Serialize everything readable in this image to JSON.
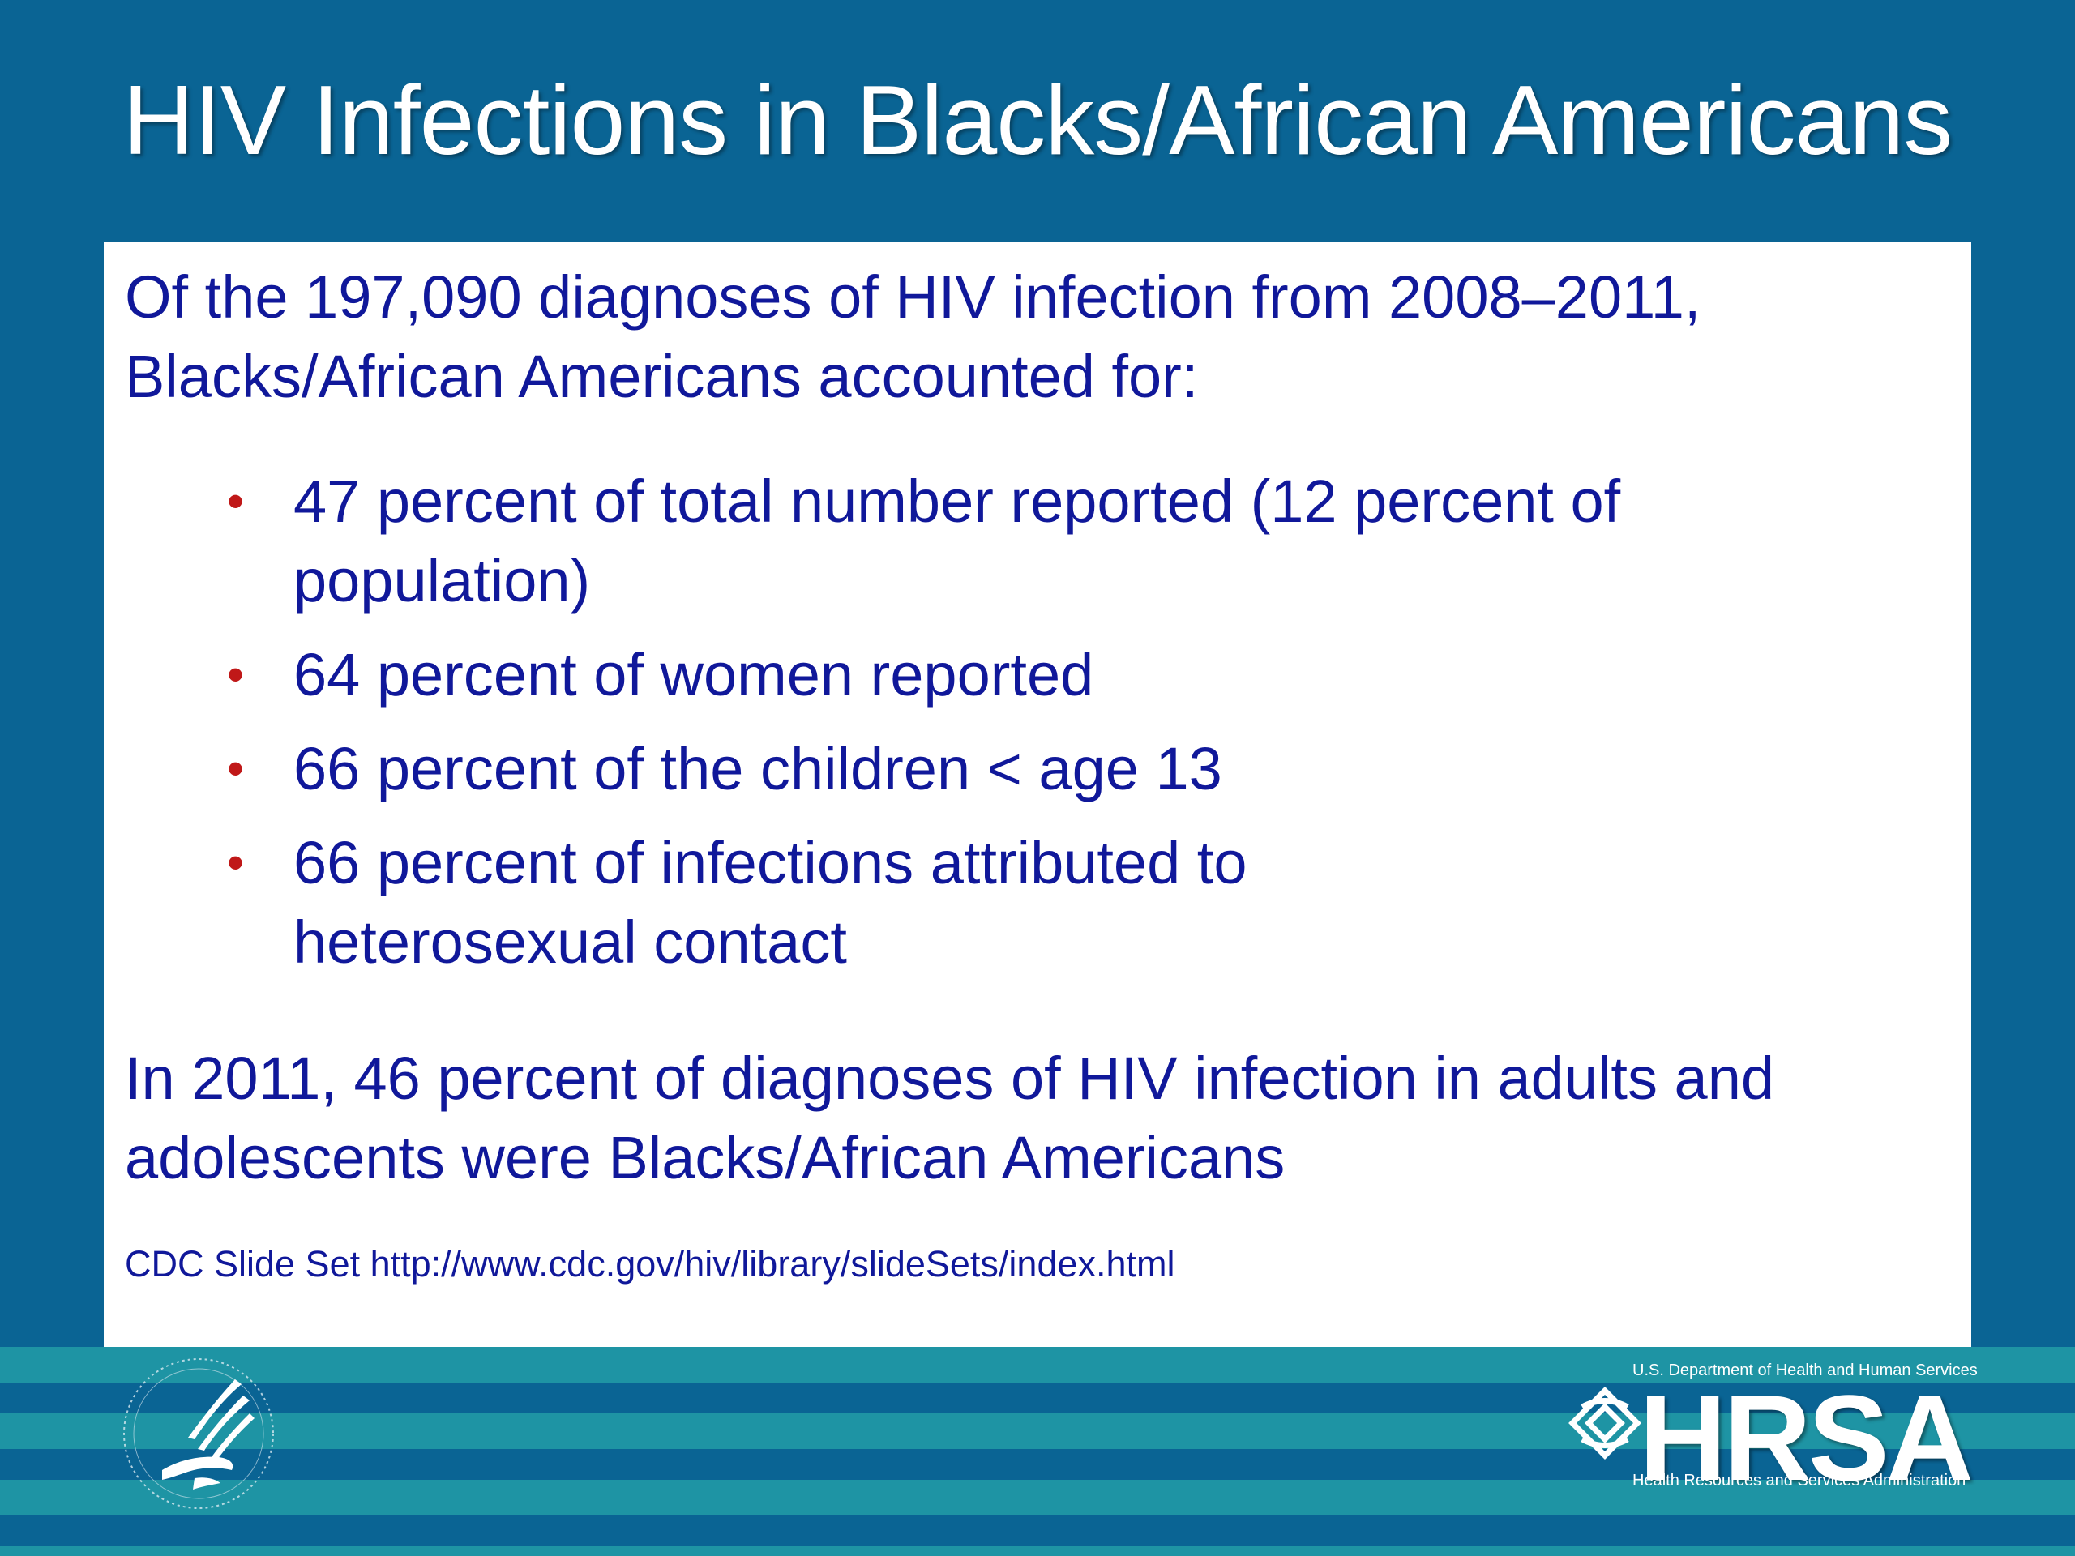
{
  "slide": {
    "title": "HIV Infections in Blacks/African Americans",
    "intro_line1": "Of  the 197,090 diagnoses of HIV infection from 2008–2011,",
    "intro_line2": "Blacks/African Americans accounted for:",
    "bullet_symbol": "•",
    "bullets": [
      {
        "line1": "47 percent of total number reported (12 percent of",
        "line2": "population)"
      },
      {
        "line1": "64 percent of women reported"
      },
      {
        "line1": "66 percent of the children < age 13"
      },
      {
        "line1": "66 percent of infections attributed to",
        "line2": "heterosexual contact"
      }
    ],
    "closing_line1": "In 2011, 46 percent of diagnoses of HIV infection in adults and",
    "closing_line2": "adolescents were Blacks/African Americans",
    "source": "CDC Slide Set http://www.cdc.gov/hiv/library/slideSets/index.html"
  },
  "footer": {
    "hrsa_department": "U.S. Department of Health and Human Services",
    "hrsa_name": "HRSA",
    "hrsa_subtitle": "Health Resources and Services Administration"
  },
  "colors": {
    "background": "#0a6494",
    "stripe_light": "#1e94a4",
    "text_navy": "#10189a",
    "bullet_red": "#c01818"
  },
  "icons": {
    "seal": "hhs-eagle-seal-icon",
    "hrsa_mark": "hrsa-knot-icon"
  }
}
